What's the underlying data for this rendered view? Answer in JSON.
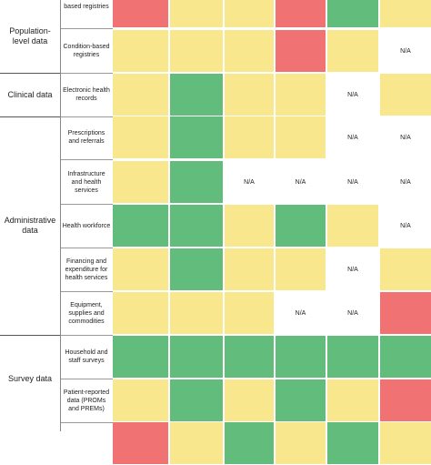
{
  "colors": {
    "red": "#f17272",
    "yellow": "#f8e78c",
    "green": "#62bc7c",
    "na": "#ffffff"
  },
  "na_label": "N/A",
  "categories": [
    {
      "label": "Population-level data",
      "rows": [
        0,
        1
      ]
    },
    {
      "label": "Clinical data",
      "rows": [
        2
      ]
    },
    {
      "label": "Administrative data",
      "rows": [
        3,
        4,
        5,
        6,
        7
      ]
    },
    {
      "label": "Survey data",
      "rows": [
        8,
        9
      ]
    }
  ],
  "rows": [
    {
      "label": "based registries",
      "cells": [
        "red",
        "yellow",
        "yellow",
        "red",
        "green",
        "yellow"
      ]
    },
    {
      "label": "Condition-based registries",
      "cells": [
        "yellow",
        "yellow",
        "yellow",
        "red",
        "yellow",
        "na"
      ]
    },
    {
      "label": "Electronic health records",
      "cells": [
        "yellow",
        "green",
        "yellow",
        "yellow",
        "na",
        "yellow"
      ]
    },
    {
      "label": "Prescriptions and referrals",
      "cells": [
        "yellow",
        "green",
        "yellow",
        "yellow",
        "na",
        "na"
      ]
    },
    {
      "label": "Infrastructure and health services",
      "cells": [
        "yellow",
        "green",
        "na",
        "na",
        "na",
        "na"
      ]
    },
    {
      "label": "Health workforce",
      "cells": [
        "green",
        "green",
        "yellow",
        "green",
        "yellow",
        "na"
      ]
    },
    {
      "label": "Financing and expenditure for health services",
      "cells": [
        "yellow",
        "green",
        "yellow",
        "yellow",
        "na",
        "yellow"
      ]
    },
    {
      "label": "Equipment, supplies and commodities",
      "cells": [
        "yellow",
        "yellow",
        "yellow",
        "na",
        "na",
        "red"
      ]
    },
    {
      "label": "Household and staff surveys",
      "cells": [
        "green",
        "green",
        "green",
        "green",
        "green",
        "green"
      ]
    },
    {
      "label": "Patient-reported data (PROMs and PREMs)",
      "cells": [
        "yellow",
        "green",
        "yellow",
        "green",
        "yellow",
        "red"
      ]
    },
    {
      "label": "",
      "cells": [
        "red",
        "yellow",
        "green",
        "yellow",
        "green",
        "yellow"
      ]
    }
  ]
}
